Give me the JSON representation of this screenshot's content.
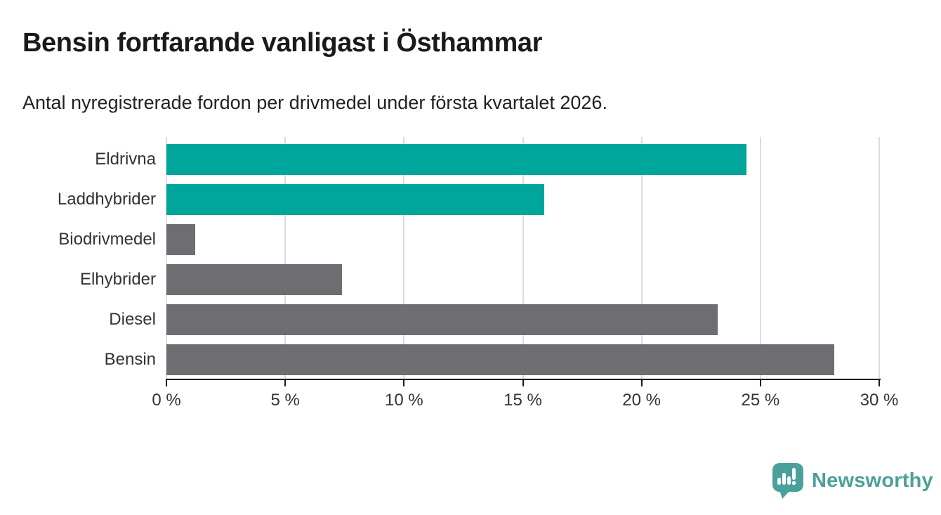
{
  "header": {
    "title": "Bensin fortfarande vanligast i Östhammar",
    "subtitle": "Antal nyregistrerade fordon per drivmedel under första kvartalet 2026."
  },
  "chart_data": {
    "type": "bar",
    "orientation": "horizontal",
    "title": "Bensin fortfarande vanligast i Östhammar",
    "subtitle": "Antal nyregistrerade fordon per drivmedel under första kvartalet 2026.",
    "categories": [
      "Eldrivna",
      "Laddhybrider",
      "Biodrivmedel",
      "Elhybrider",
      "Diesel",
      "Bensin"
    ],
    "values": [
      24.4,
      15.9,
      1.2,
      7.4,
      23.2,
      28.1
    ],
    "unit": "%",
    "bar_colors": [
      "#00a59b",
      "#00a59b",
      "#6e6d71",
      "#6e6d71",
      "#6e6d71",
      "#6e6d71"
    ],
    "xlim": [
      0,
      30
    ],
    "x_tick_values": [
      0,
      5,
      10,
      15,
      20,
      25,
      30
    ],
    "x_tick_labels": [
      "0 %",
      "5 %",
      "10 %",
      "15 %",
      "20 %",
      "25 %",
      "30 %"
    ],
    "xlabel": "",
    "ylabel": "",
    "grid": "vertical",
    "legend": "none"
  },
  "colors": {
    "teal": "#00a59b",
    "gray": "#6e6d71",
    "grid_line": "#dcdcdc",
    "axis_line": "#1a1a1a",
    "tick_text": "#333333",
    "logo_teal": "#4aa19b"
  },
  "footer": {
    "brand": "Newsworthy",
    "logo_icon": "bar-chart-speech-bubble-icon"
  }
}
